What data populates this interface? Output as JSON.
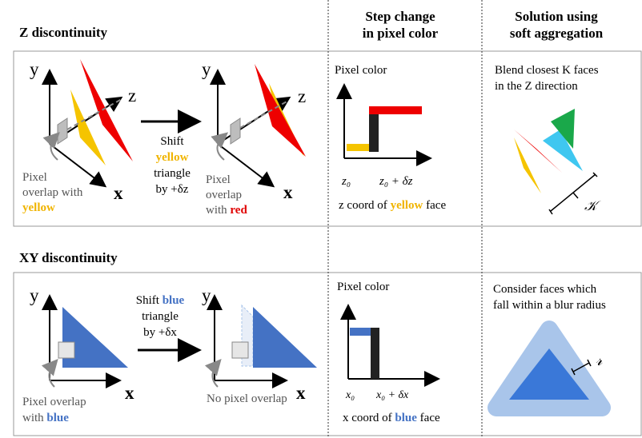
{
  "headers": {
    "step_change": "Step change\nin pixel color",
    "solution": "Solution using\nsoft aggregation"
  },
  "z_section": {
    "title": "Z discontinuity",
    "axes": {
      "y": "y",
      "z": "z",
      "x": "x"
    },
    "left_caption": {
      "line1": "Pixel",
      "line2": "overlap with",
      "highlight": "yellow"
    },
    "shift": {
      "word": "Shift",
      "highlight": "yellow",
      "line3": "triangle",
      "line4": "by +δz"
    },
    "right_caption": {
      "line1": "Pixel",
      "line2": "overlap",
      "prefix": "with",
      "highlight": "red"
    },
    "chart": {
      "ylabel": "Pixel color",
      "tick1": "z₀",
      "tick2": "z₀ + δz",
      "caption_prefix": "z coord of",
      "caption_highlight": "yellow",
      "caption_suffix": "face"
    },
    "solution": {
      "line1": "Blend closest K faces",
      "line2": "in the Z direction",
      "k_label": "𝒦"
    }
  },
  "xy_section": {
    "title": "XY discontinuity",
    "axes": {
      "y": "y",
      "x": "x"
    },
    "left_caption": {
      "line1": "Pixel overlap",
      "prefix": "with",
      "highlight": "blue"
    },
    "shift": {
      "word": "Shift",
      "highlight": "blue",
      "line2": "triangle",
      "line3": "by +δx"
    },
    "right_caption": "No pixel overlap",
    "chart": {
      "ylabel": "Pixel color",
      "tick1": "x₀",
      "tick2": "x₀ + δx",
      "caption_prefix": "x coord of",
      "caption_highlight": "blue",
      "caption_suffix": "face"
    },
    "solution": {
      "line1": "Consider faces which",
      "line2": "fall within a blur radius",
      "r_label": "𝓇"
    }
  },
  "colors": {
    "yellow": "#f5c400",
    "red": "#ee0000",
    "blue": "#4472c4",
    "blur_outer": "#a9c5ea",
    "green": "#1aa84a",
    "cyan": "#3fc7f0"
  }
}
